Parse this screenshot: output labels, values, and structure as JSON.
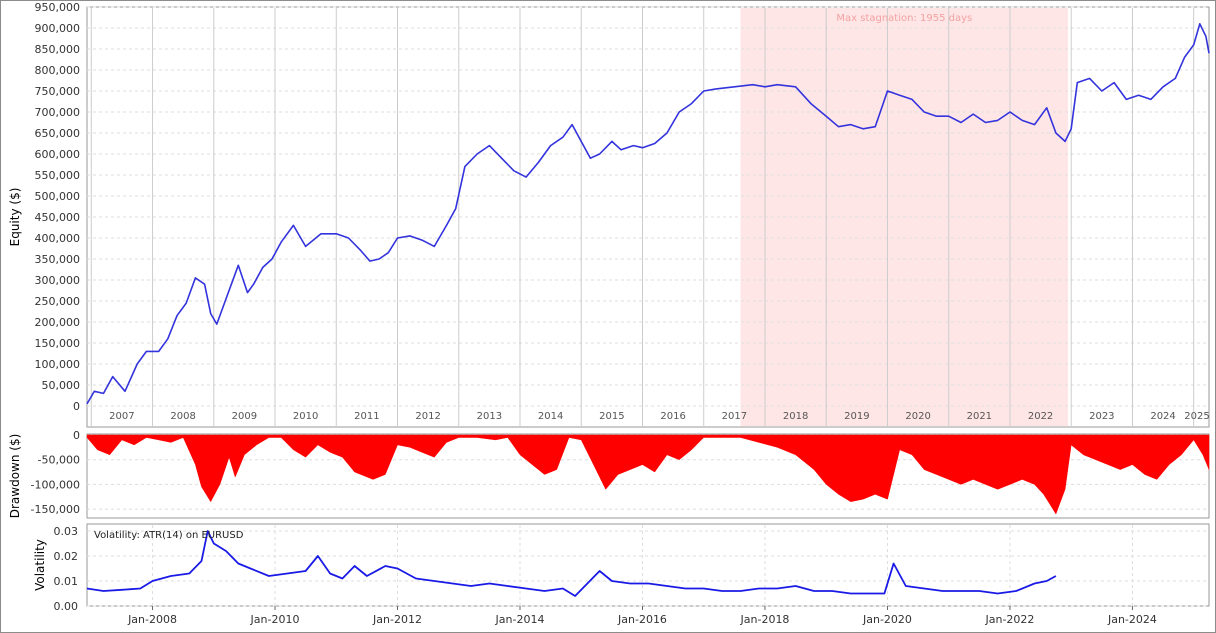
{
  "chart_data": [
    {
      "type": "line",
      "ylabel": "Equity ($)",
      "ylim": [
        0,
        950000
      ],
      "yticks": [
        "0",
        "50,000",
        "100,000",
        "150,000",
        "200,000",
        "250,000",
        "300,000",
        "350,000",
        "400,000",
        "450,000",
        "500,000",
        "550,000",
        "600,000",
        "650,000",
        "700,000",
        "750,000",
        "800,000",
        "850,000",
        "900,000",
        "950,000"
      ],
      "ytick_values": [
        0,
        50000,
        100000,
        150000,
        200000,
        250000,
        300000,
        350000,
        400000,
        450000,
        500000,
        550000,
        600000,
        650000,
        700000,
        750000,
        800000,
        850000,
        900000,
        950000
      ],
      "year_labels": [
        "2007",
        "2008",
        "2009",
        "2010",
        "2011",
        "2012",
        "2013",
        "2014",
        "2015",
        "2016",
        "2017",
        "2018",
        "2019",
        "2020",
        "2021",
        "2022",
        "2023",
        "2024",
        "2025"
      ],
      "xlim": [
        2006.93,
        2025.25
      ],
      "stagnation": {
        "label": "Max stagnation: 1955 days",
        "start": 2017.6,
        "end": 2022.95,
        "color": "#ffe6e6"
      },
      "series": [
        {
          "color": "#3333dd",
          "x": [
            2006.93,
            2007.05,
            2007.2,
            2007.35,
            2007.55,
            2007.75,
            2007.9,
            2008.1,
            2008.25,
            2008.4,
            2008.55,
            2008.7,
            2008.85,
            2008.95,
            2009.05,
            2009.2,
            2009.4,
            2009.55,
            2009.65,
            2009.8,
            2009.95,
            2010.1,
            2010.3,
            2010.5,
            2010.75,
            2011.0,
            2011.2,
            2011.4,
            2011.55,
            2011.7,
            2011.85,
            2012.0,
            2012.2,
            2012.4,
            2012.6,
            2012.8,
            2012.95,
            2013.1,
            2013.3,
            2013.5,
            2013.7,
            2013.9,
            2014.1,
            2014.3,
            2014.5,
            2014.7,
            2014.85,
            2015.0,
            2015.15,
            2015.3,
            2015.5,
            2015.65,
            2015.85,
            2016.0,
            2016.2,
            2016.4,
            2016.6,
            2016.8,
            2017.0,
            2017.2,
            2017.5,
            2017.8,
            2018.0,
            2018.2,
            2018.5,
            2018.75,
            2019.0,
            2019.2,
            2019.4,
            2019.6,
            2019.8,
            2020.0,
            2020.2,
            2020.4,
            2020.6,
            2020.8,
            2021.0,
            2021.2,
            2021.4,
            2021.6,
            2021.8,
            2022.0,
            2022.2,
            2022.4,
            2022.6,
            2022.75,
            2022.9,
            2023.0,
            2023.1,
            2023.3,
            2023.5,
            2023.7,
            2023.9,
            2024.1,
            2024.3,
            2024.5,
            2024.7,
            2024.85,
            2025.0,
            2025.1,
            2025.2,
            2025.25
          ],
          "values": [
            5000,
            35000,
            30000,
            70000,
            35000,
            100000,
            130000,
            130000,
            160000,
            215000,
            245000,
            305000,
            290000,
            220000,
            195000,
            255000,
            335000,
            270000,
            290000,
            330000,
            350000,
            390000,
            430000,
            380000,
            410000,
            410000,
            400000,
            370000,
            345000,
            350000,
            365000,
            400000,
            405000,
            395000,
            380000,
            430000,
            470000,
            570000,
            600000,
            620000,
            590000,
            560000,
            545000,
            580000,
            620000,
            640000,
            670000,
            630000,
            590000,
            600000,
            630000,
            610000,
            620000,
            615000,
            625000,
            650000,
            700000,
            720000,
            750000,
            755000,
            760000,
            765000,
            760000,
            765000,
            760000,
            720000,
            690000,
            665000,
            670000,
            660000,
            665000,
            750000,
            740000,
            730000,
            700000,
            690000,
            690000,
            675000,
            695000,
            675000,
            680000,
            700000,
            680000,
            670000,
            710000,
            650000,
            630000,
            660000,
            770000,
            780000,
            750000,
            770000,
            730000,
            740000,
            730000,
            760000,
            780000,
            830000,
            860000,
            910000,
            880000,
            840000
          ]
        }
      ]
    },
    {
      "type": "area",
      "ylabel": "Drawdown ($)",
      "ylim": [
        -160000,
        0
      ],
      "yticks": [
        "0",
        "-50,000",
        "-100,000",
        "-150,000"
      ],
      "ytick_values": [
        0,
        -50000,
        -100000,
        -150000
      ],
      "xlim": [
        2006.93,
        2025.25
      ],
      "series": [
        {
          "color": "#ff0000",
          "x": [
            2006.93,
            2007.1,
            2007.3,
            2007.5,
            2007.7,
            2007.9,
            2008.1,
            2008.3,
            2008.5,
            2008.7,
            2008.8,
            2008.95,
            2009.1,
            2009.25,
            2009.35,
            2009.5,
            2009.7,
            2009.9,
            2010.1,
            2010.3,
            2010.5,
            2010.7,
            2010.9,
            2011.1,
            2011.3,
            2011.6,
            2011.8,
            2012.0,
            2012.2,
            2012.4,
            2012.6,
            2012.8,
            2013.0,
            2013.3,
            2013.6,
            2013.8,
            2014.0,
            2014.2,
            2014.4,
            2014.6,
            2014.8,
            2015.0,
            2015.2,
            2015.4,
            2015.6,
            2015.8,
            2016.0,
            2016.2,
            2016.4,
            2016.6,
            2016.8,
            2017.0,
            2017.3,
            2017.6,
            2017.9,
            2018.2,
            2018.5,
            2018.8,
            2019.0,
            2019.2,
            2019.4,
            2019.6,
            2019.8,
            2020.0,
            2020.2,
            2020.4,
            2020.6,
            2020.8,
            2021.0,
            2021.2,
            2021.4,
            2021.6,
            2021.8,
            2022.0,
            2022.2,
            2022.4,
            2022.55,
            2022.65,
            2022.75,
            2022.9,
            2023.0,
            2023.2,
            2023.4,
            2023.6,
            2023.8,
            2024.0,
            2024.2,
            2024.4,
            2024.6,
            2024.8,
            2025.0,
            2025.15,
            2025.25
          ],
          "values": [
            -5000,
            -30000,
            -40000,
            -10000,
            -20000,
            -5000,
            -10000,
            -15000,
            -5000,
            -60000,
            -105000,
            -135000,
            -100000,
            -45000,
            -85000,
            -40000,
            -20000,
            -5000,
            -5000,
            -30000,
            -45000,
            -20000,
            -35000,
            -45000,
            -75000,
            -90000,
            -80000,
            -20000,
            -25000,
            -35000,
            -45000,
            -15000,
            -5000,
            -5000,
            -10000,
            -5000,
            -40000,
            -60000,
            -80000,
            -70000,
            -5000,
            -10000,
            -60000,
            -110000,
            -80000,
            -70000,
            -60000,
            -75000,
            -40000,
            -50000,
            -30000,
            -5000,
            -5000,
            -5000,
            -15000,
            -25000,
            -40000,
            -70000,
            -100000,
            -120000,
            -135000,
            -130000,
            -120000,
            -130000,
            -30000,
            -40000,
            -70000,
            -80000,
            -90000,
            -100000,
            -90000,
            -100000,
            -110000,
            -100000,
            -90000,
            -100000,
            -120000,
            -140000,
            -160000,
            -110000,
            -20000,
            -40000,
            -50000,
            -60000,
            -70000,
            -60000,
            -80000,
            -90000,
            -60000,
            -40000,
            -10000,
            -40000,
            -70000
          ]
        }
      ]
    },
    {
      "type": "line",
      "ylabel": "Volatility",
      "annotation": "Volatility: ATR(14) on EURUSD",
      "ylim": [
        0,
        0.03
      ],
      "yticks": [
        "0.00",
        "0.01",
        "0.02",
        "0.03"
      ],
      "ytick_values": [
        0,
        0.01,
        0.02,
        0.03
      ],
      "xlim": [
        2006.93,
        2025.25
      ],
      "xticks": [
        "Jan-2008",
        "Jan-2010",
        "Jan-2012",
        "Jan-2014",
        "Jan-2016",
        "Jan-2018",
        "Jan-2020",
        "Jan-2022",
        "Jan-2024"
      ],
      "xtick_values": [
        2008,
        2010,
        2012,
        2014,
        2016,
        2018,
        2020,
        2022,
        2024
      ],
      "series": [
        {
          "color": "#1a1ae6",
          "x": [
            2006.93,
            2007.2,
            2007.5,
            2007.8,
            2008.0,
            2008.3,
            2008.6,
            2008.8,
            2008.9,
            2009.0,
            2009.2,
            2009.4,
            2009.6,
            2009.9,
            2010.2,
            2010.5,
            2010.7,
            2010.9,
            2011.1,
            2011.3,
            2011.5,
            2011.8,
            2012.0,
            2012.3,
            2012.6,
            2012.9,
            2013.2,
            2013.5,
            2013.8,
            2014.1,
            2014.4,
            2014.7,
            2014.9,
            2015.3,
            2015.5,
            2015.8,
            2016.1,
            2016.4,
            2016.7,
            2017.0,
            2017.3,
            2017.6,
            2017.9,
            2018.2,
            2018.5,
            2018.8,
            2019.1,
            2019.4,
            2019.7,
            2019.95,
            2020.1,
            2020.3,
            2020.6,
            2020.9,
            2021.2,
            2021.5,
            2021.8,
            2022.1,
            2022.4,
            2022.6,
            2022.75
          ],
          "values": [
            0.007,
            0.006,
            0.0065,
            0.007,
            0.01,
            0.012,
            0.013,
            0.018,
            0.03,
            0.025,
            0.022,
            0.017,
            0.015,
            0.012,
            0.013,
            0.014,
            0.02,
            0.013,
            0.011,
            0.016,
            0.012,
            0.016,
            0.015,
            0.011,
            0.01,
            0.009,
            0.008,
            0.009,
            0.008,
            0.007,
            0.006,
            0.007,
            0.004,
            0.014,
            0.01,
            0.009,
            0.009,
            0.008,
            0.007,
            0.007,
            0.006,
            0.006,
            0.007,
            0.007,
            0.008,
            0.006,
            0.006,
            0.005,
            0.005,
            0.005,
            0.017,
            0.008,
            0.007,
            0.006,
            0.006,
            0.006,
            0.005,
            0.006,
            0.009,
            0.01,
            0.012
          ]
        }
      ]
    }
  ]
}
